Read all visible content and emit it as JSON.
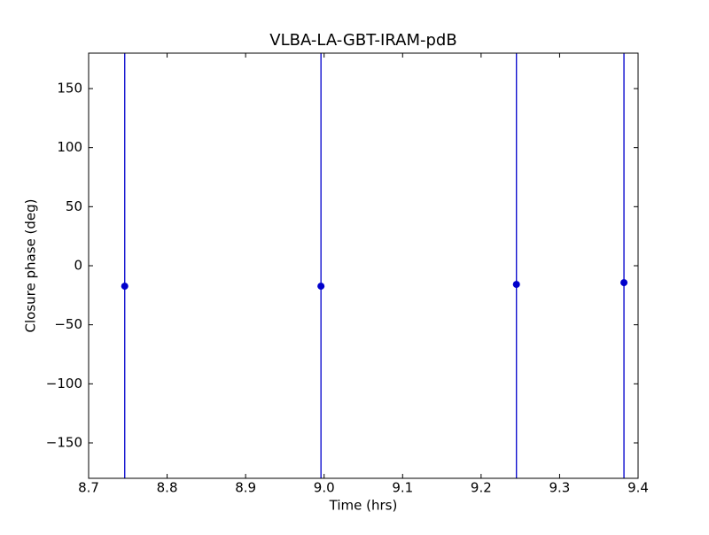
{
  "chart_data": {
    "type": "errorbar",
    "title": "VLBA-LA-GBT-IRAM-pdB",
    "x_label": "Time (hrs)",
    "y_label": "Closure phase (deg)",
    "color": "#0000cc",
    "x": [
      8.746,
      8.996,
      9.245,
      9.382
    ],
    "values": [
      -17.3,
      -17.3,
      -15.8,
      -14.3
    ],
    "errors": [
      200,
      200,
      200,
      200
    ],
    "xlim": [
      8.7,
      9.4
    ],
    "xticks": [
      8.7,
      8.8,
      8.9,
      {
        "value": 9,
        "label": "9.0"
      },
      9.1,
      9.2,
      9.3,
      9.4
    ],
    "ylim": [
      -180,
      180
    ],
    "yticks": [
      {
        "value": -150,
        "label": "−150"
      },
      {
        "value": -100,
        "label": "−100"
      },
      {
        "value": -50,
        "label": "−50"
      },
      0,
      50,
      100,
      150
    ]
  }
}
